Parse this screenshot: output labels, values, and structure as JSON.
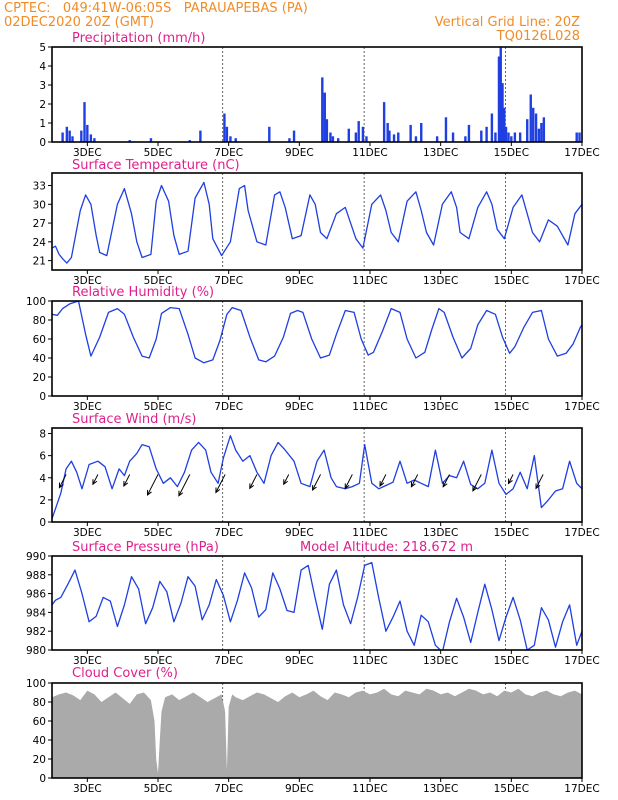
{
  "header": {
    "line1_left": "CPTEC:   049:41W-06:05S   PARAUAPEBAS (PA)",
    "line2_left": "02DEC2020 20Z (GMT)",
    "line1_right": "Vertical Grid Line: 20Z",
    "line2_right": "TQ0126L028"
  },
  "colors": {
    "header": "#f08c28",
    "title": "#e0208c",
    "series": "#1f3fe0",
    "cloud": "#aaaaaa",
    "axis": "#000000"
  },
  "x_axis": {
    "start_day": 2.0,
    "end_day": 17.0,
    "tick_days": [
      3,
      5,
      7,
      9,
      11,
      13,
      15,
      17
    ],
    "tick_labels": [
      "3DEC",
      "5DEC",
      "7DEC",
      "9DEC",
      "11DEC",
      "13DEC",
      "15DEC",
      "17DEC"
    ],
    "grid_days": [
      6.833,
      10.833,
      14.833
    ],
    "grid_note": "Vertical Grid Line: 20Z"
  },
  "chart_data": [
    {
      "id": "precip",
      "type": "bar",
      "title": "Precipitation (mm/h)",
      "ylim": [
        0,
        5
      ],
      "yticks": [
        0,
        1,
        2,
        3,
        4,
        5
      ],
      "x": [
        2.3,
        2.42,
        2.5,
        2.58,
        2.83,
        2.92,
        3.0,
        3.1,
        3.2,
        4.2,
        4.8,
        5.9,
        6.2,
        6.88,
        6.95,
        7.05,
        7.2,
        8.15,
        8.72,
        8.85,
        9.65,
        9.72,
        9.78,
        9.88,
        9.95,
        10.1,
        10.4,
        10.6,
        10.68,
        10.8,
        10.9,
        11.4,
        11.5,
        11.55,
        11.68,
        11.8,
        12.15,
        12.3,
        12.45,
        12.9,
        13.15,
        13.35,
        13.7,
        13.8,
        14.15,
        14.3,
        14.45,
        14.55,
        14.65,
        14.7,
        14.75,
        14.8,
        14.85,
        14.92,
        15.0,
        15.1,
        15.25,
        15.45,
        15.55,
        15.62,
        15.7,
        15.78,
        15.85,
        15.92,
        16.85,
        16.93
      ],
      "values": [
        0.5,
        0.8,
        0.6,
        0.3,
        0.6,
        2.1,
        0.9,
        0.4,
        0.2,
        0.1,
        0.2,
        0.1,
        0.6,
        1.5,
        0.8,
        0.3,
        0.2,
        0.8,
        0.2,
        0.6,
        3.4,
        2.6,
        1.2,
        0.5,
        0.3,
        0.2,
        0.7,
        0.5,
        1.1,
        0.8,
        0.3,
        2.1,
        1.0,
        0.6,
        0.4,
        0.5,
        0.9,
        0.3,
        1.0,
        0.3,
        1.3,
        0.5,
        0.3,
        0.9,
        0.6,
        0.8,
        1.5,
        0.5,
        4.5,
        5.0,
        3.1,
        1.8,
        0.8,
        0.5,
        0.3,
        0.5,
        0.5,
        1.2,
        2.5,
        1.8,
        1.5,
        0.7,
        1.0,
        1.3,
        0.5,
        0.5
      ]
    },
    {
      "id": "temp",
      "type": "line",
      "title": "Surface Temperature (nC)",
      "ylim": [
        19.5,
        35
      ],
      "yticks": [
        21,
        24,
        27,
        30,
        33
      ],
      "x": [
        2.0,
        2.1,
        2.2,
        2.3,
        2.42,
        2.55,
        2.8,
        2.95,
        3.1,
        3.25,
        3.35,
        3.55,
        3.85,
        4.05,
        4.25,
        4.4,
        4.55,
        4.8,
        4.95,
        5.1,
        5.3,
        5.45,
        5.6,
        5.85,
        6.05,
        6.3,
        6.45,
        6.55,
        6.8,
        7.05,
        7.3,
        7.45,
        7.55,
        7.8,
        8.05,
        8.3,
        8.45,
        8.6,
        8.8,
        9.05,
        9.3,
        9.45,
        9.6,
        9.78,
        10.05,
        10.3,
        10.45,
        10.6,
        10.8,
        11.05,
        11.3,
        11.45,
        11.6,
        11.8,
        12.05,
        12.3,
        12.45,
        12.6,
        12.8,
        13.05,
        13.3,
        13.45,
        13.55,
        13.8,
        14.05,
        14.3,
        14.45,
        14.6,
        14.8,
        15.05,
        15.3,
        15.45,
        15.6,
        15.8,
        16.05,
        16.3,
        16.45,
        16.6,
        16.8,
        17.0
      ],
      "values": [
        23.0,
        23.3,
        22.0,
        21.3,
        20.6,
        21.5,
        29.0,
        31.5,
        30.0,
        25.0,
        22.3,
        21.8,
        30.0,
        32.5,
        28.5,
        24.0,
        21.5,
        22.0,
        30.5,
        33.0,
        30.5,
        25.0,
        22.0,
        22.5,
        31.0,
        33.5,
        30.0,
        24.5,
        21.8,
        24.0,
        32.5,
        33.0,
        29.0,
        24.0,
        23.5,
        31.5,
        32.0,
        29.5,
        24.5,
        25.0,
        31.5,
        30.0,
        25.5,
        24.5,
        28.5,
        29.5,
        27.0,
        24.5,
        23.0,
        30.0,
        31.5,
        29.0,
        25.5,
        24.0,
        30.5,
        32.0,
        29.0,
        25.5,
        23.5,
        30.0,
        32.0,
        29.5,
        25.5,
        24.5,
        29.5,
        32.0,
        30.0,
        26.0,
        24.5,
        29.5,
        31.5,
        28.5,
        25.5,
        24.0,
        27.5,
        26.5,
        25.0,
        23.5,
        28.5,
        30.0
      ]
    },
    {
      "id": "rh",
      "type": "line",
      "title": "Relative Humidity (%)",
      "ylim": [
        0,
        100
      ],
      "yticks": [
        0,
        20,
        40,
        60,
        80,
        100
      ],
      "x": [
        2.0,
        2.15,
        2.3,
        2.5,
        2.75,
        2.95,
        3.1,
        3.35,
        3.6,
        3.85,
        4.05,
        4.3,
        4.55,
        4.75,
        4.95,
        5.1,
        5.35,
        5.6,
        5.85,
        6.05,
        6.3,
        6.55,
        6.75,
        6.95,
        7.1,
        7.35,
        7.6,
        7.85,
        8.05,
        8.3,
        8.55,
        8.75,
        8.95,
        9.1,
        9.35,
        9.6,
        9.85,
        10.05,
        10.3,
        10.55,
        10.75,
        10.95,
        11.1,
        11.35,
        11.6,
        11.85,
        12.05,
        12.3,
        12.55,
        12.75,
        12.95,
        13.1,
        13.35,
        13.6,
        13.85,
        14.05,
        14.3,
        14.55,
        14.75,
        14.95,
        15.1,
        15.35,
        15.6,
        15.85,
        16.05,
        16.3,
        16.55,
        16.75,
        16.95,
        17.0
      ],
      "values": [
        86,
        85,
        92,
        97,
        100,
        65,
        42,
        62,
        88,
        92,
        86,
        62,
        42,
        40,
        60,
        87,
        93,
        92,
        65,
        40,
        35,
        38,
        58,
        86,
        93,
        90,
        62,
        38,
        36,
        42,
        62,
        87,
        90,
        88,
        60,
        40,
        43,
        65,
        90,
        88,
        60,
        43,
        46,
        68,
        92,
        88,
        60,
        40,
        46,
        70,
        92,
        88,
        62,
        40,
        50,
        75,
        90,
        86,
        62,
        45,
        52,
        72,
        88,
        90,
        60,
        42,
        45,
        55,
        72,
        75
      ]
    },
    {
      "id": "wind",
      "type": "line",
      "title": "Surface Wind (m/s)",
      "ylim": [
        0,
        8.5
      ],
      "yticks": [
        0,
        2,
        4,
        6,
        8
      ],
      "x": [
        2.0,
        2.1,
        2.25,
        2.4,
        2.55,
        2.7,
        2.85,
        3.05,
        3.3,
        3.5,
        3.7,
        3.9,
        4.05,
        4.2,
        4.4,
        4.55,
        4.75,
        4.95,
        5.15,
        5.35,
        5.55,
        5.75,
        5.95,
        6.15,
        6.35,
        6.5,
        6.7,
        6.85,
        7.05,
        7.2,
        7.4,
        7.6,
        7.8,
        8.0,
        8.2,
        8.4,
        8.6,
        8.85,
        9.05,
        9.3,
        9.5,
        9.7,
        9.9,
        10.05,
        10.3,
        10.5,
        10.7,
        10.85,
        11.05,
        11.25,
        11.45,
        11.65,
        11.85,
        12.05,
        12.25,
        12.45,
        12.65,
        12.85,
        13.05,
        13.25,
        13.45,
        13.65,
        13.85,
        14.05,
        14.25,
        14.45,
        14.65,
        14.85,
        15.05,
        15.25,
        15.45,
        15.65,
        15.85,
        16.05,
        16.25,
        16.45,
        16.65,
        16.85,
        17.0
      ],
      "values": [
        0.3,
        1.2,
        2.6,
        4.8,
        5.5,
        4.5,
        3.0,
        5.2,
        5.5,
        5.0,
        3.0,
        4.8,
        4.2,
        5.5,
        6.2,
        7.0,
        6.8,
        4.8,
        3.5,
        4.0,
        3.2,
        4.5,
        6.5,
        7.2,
        6.5,
        4.5,
        3.5,
        5.8,
        7.8,
        6.5,
        5.5,
        6.0,
        4.5,
        3.5,
        6.0,
        7.2,
        6.5,
        5.5,
        3.5,
        3.2,
        5.5,
        6.5,
        4.0,
        3.2,
        3.0,
        3.2,
        3.5,
        7.0,
        3.5,
        3.0,
        3.3,
        3.6,
        5.5,
        3.5,
        3.8,
        3.5,
        3.2,
        6.5,
        3.5,
        4.2,
        4.0,
        5.5,
        3.4,
        3.0,
        3.5,
        6.5,
        3.5,
        2.5,
        3.0,
        4.5,
        3.0,
        6.0,
        1.3,
        2.0,
        2.8,
        3.0,
        5.5,
        3.5,
        3.0
      ],
      "barbs_x": [
        2.4,
        3.3,
        4.2,
        5.0,
        5.9,
        6.9,
        7.8,
        8.7,
        9.6,
        10.5,
        11.45,
        12.35,
        13.25,
        14.15,
        15.05,
        15.9
      ],
      "barbs_u": [
        0.6,
        0.5,
        0.6,
        0.3,
        0.3,
        0.6,
        0.8,
        0.5,
        0.5,
        0.5,
        0.6,
        0.6,
        0.5,
        0.5,
        0.6,
        0.5
      ],
      "barbs_v": [
        -1.6,
        -1.2,
        -1.4,
        -2.5,
        -2.6,
        -2.2,
        -1.7,
        -1.2,
        -1.9,
        -1.7,
        -1.4,
        -1.5,
        -1.5,
        -2.0,
        -1.1,
        -1.7
      ]
    },
    {
      "id": "pres",
      "type": "line",
      "title": "Surface Pressure (hPa)",
      "title_right": "Model Altitude: 218.672 m",
      "ylim": [
        980,
        990
      ],
      "yticks": [
        980,
        982,
        984,
        986,
        988,
        990
      ],
      "x": [
        2.0,
        2.1,
        2.25,
        2.45,
        2.65,
        2.85,
        3.05,
        3.25,
        3.45,
        3.65,
        3.85,
        4.05,
        4.25,
        4.45,
        4.65,
        4.85,
        5.05,
        5.25,
        5.45,
        5.65,
        5.85,
        6.05,
        6.25,
        6.45,
        6.65,
        6.85,
        7.05,
        7.25,
        7.45,
        7.65,
        7.85,
        8.05,
        8.25,
        8.45,
        8.65,
        8.85,
        9.05,
        9.25,
        9.45,
        9.65,
        9.85,
        10.05,
        10.25,
        10.45,
        10.65,
        10.85,
        11.05,
        11.25,
        11.45,
        11.65,
        11.85,
        12.05,
        12.25,
        12.45,
        12.65,
        12.85,
        13.05,
        13.25,
        13.45,
        13.65,
        13.85,
        14.05,
        14.25,
        14.45,
        14.65,
        14.85,
        15.05,
        15.25,
        15.45,
        15.65,
        15.85,
        16.05,
        16.25,
        16.45,
        16.65,
        16.85,
        17.0
      ],
      "values": [
        984.8,
        985.3,
        985.6,
        987.0,
        988.5,
        986.0,
        983.0,
        983.6,
        985.6,
        985.2,
        982.5,
        984.8,
        987.8,
        986.5,
        982.8,
        984.5,
        987.3,
        986.2,
        983.0,
        985.0,
        987.8,
        986.8,
        983.2,
        984.8,
        987.5,
        985.8,
        983.0,
        985.3,
        988.2,
        986.6,
        983.5,
        984.3,
        988.2,
        986.5,
        984.2,
        984.0,
        988.5,
        989.0,
        985.5,
        982.2,
        987.0,
        988.5,
        984.8,
        982.8,
        985.6,
        989.0,
        989.3,
        985.5,
        982.0,
        983.5,
        985.2,
        982.0,
        980.5,
        983.7,
        983.0,
        980.5,
        979.8,
        983.0,
        985.5,
        983.5,
        980.8,
        984.0,
        987.0,
        984.3,
        981.0,
        983.5,
        985.6,
        983.2,
        980.0,
        980.5,
        984.5,
        983.2,
        980.3,
        983.0,
        984.8,
        980.5,
        982.0
      ]
    },
    {
      "id": "cloud",
      "type": "area",
      "title": "Cloud Cover (%)",
      "ylim": [
        0,
        100
      ],
      "yticks": [
        0,
        20,
        40,
        60,
        80,
        100
      ],
      "x": [
        2.0,
        2.2,
        2.4,
        2.6,
        2.8,
        3.0,
        3.2,
        3.4,
        3.6,
        3.8,
        4.0,
        4.2,
        4.4,
        4.6,
        4.8,
        4.9,
        4.95,
        5.0,
        5.05,
        5.1,
        5.2,
        5.4,
        5.6,
        5.8,
        6.0,
        6.2,
        6.4,
        6.6,
        6.8,
        6.9,
        6.95,
        7.0,
        7.1,
        7.2,
        7.4,
        7.6,
        7.8,
        8.0,
        8.2,
        8.4,
        8.6,
        8.8,
        9.0,
        9.2,
        9.4,
        9.6,
        9.8,
        10.0,
        10.2,
        10.4,
        10.6,
        10.8,
        11.0,
        11.2,
        11.4,
        11.6,
        11.8,
        12.0,
        12.2,
        12.4,
        12.6,
        12.8,
        13.0,
        13.2,
        13.4,
        13.6,
        13.8,
        14.0,
        14.2,
        14.4,
        14.6,
        14.8,
        15.0,
        15.2,
        15.4,
        15.6,
        15.8,
        16.0,
        16.2,
        16.4,
        16.6,
        16.8,
        17.0
      ],
      "values": [
        85,
        88,
        90,
        87,
        82,
        92,
        88,
        80,
        85,
        90,
        84,
        78,
        88,
        90,
        82,
        60,
        20,
        5,
        40,
        70,
        85,
        88,
        82,
        86,
        90,
        85,
        80,
        84,
        88,
        70,
        8,
        75,
        88,
        85,
        82,
        86,
        90,
        88,
        84,
        80,
        86,
        90,
        85,
        88,
        92,
        86,
        82,
        90,
        88,
        85,
        90,
        92,
        88,
        90,
        94,
        88,
        86,
        92,
        90,
        88,
        94,
        92,
        88,
        90,
        86,
        90,
        94,
        92,
        88,
        90,
        86,
        92,
        90,
        94,
        88,
        86,
        90,
        92,
        88,
        86,
        90,
        92,
        88
      ]
    }
  ]
}
